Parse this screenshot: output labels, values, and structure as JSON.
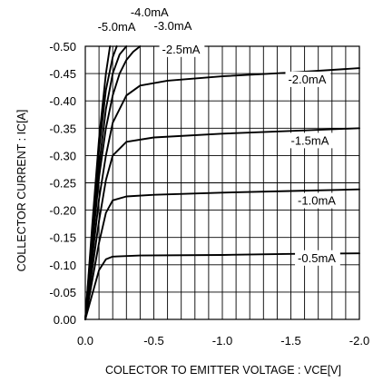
{
  "chart_data": {
    "type": "line",
    "title": "",
    "xlabel": "COLECTOR TO EMITTER VOLTAGE : VCE[V]",
    "ylabel": "COLLECTOR CURRENT : IC[A]",
    "xlim": [
      0,
      -2.0
    ],
    "ylim": [
      0,
      -0.5
    ],
    "grid": true,
    "x_ticks": [
      "0.0",
      "-0.5",
      "-1.0",
      "-1.5",
      "-2.0"
    ],
    "x_tick_values": [
      0,
      -0.5,
      -1.0,
      -1.5,
      -2.0
    ],
    "y_ticks": [
      "0.00",
      "-0.05",
      "-0.10",
      "-0.15",
      "-0.20",
      "-0.25",
      "-0.30",
      "-0.35",
      "-0.40",
      "-0.45",
      "-0.50"
    ],
    "y_tick_values": [
      0,
      -0.05,
      -0.1,
      -0.15,
      -0.2,
      -0.25,
      -0.3,
      -0.35,
      -0.4,
      -0.45,
      -0.5
    ],
    "series": [
      {
        "name": "-0.5mA",
        "label_at": [
          -1.55,
          -0.105
        ],
        "points": [
          [
            0,
            0
          ],
          [
            -0.05,
            -0.045
          ],
          [
            -0.1,
            -0.09
          ],
          [
            -0.15,
            -0.11
          ],
          [
            -0.2,
            -0.115
          ],
          [
            -0.4,
            -0.117
          ],
          [
            -1.0,
            -0.118
          ],
          [
            -1.5,
            -0.12
          ],
          [
            -2.0,
            -0.121
          ]
        ]
      },
      {
        "name": "-1.0mA",
        "label_at": [
          -1.55,
          -0.21
        ],
        "points": [
          [
            0,
            0
          ],
          [
            -0.05,
            -0.07
          ],
          [
            -0.1,
            -0.14
          ],
          [
            -0.15,
            -0.195
          ],
          [
            -0.2,
            -0.218
          ],
          [
            -0.3,
            -0.225
          ],
          [
            -0.5,
            -0.228
          ],
          [
            -1.0,
            -0.232
          ],
          [
            -1.5,
            -0.235
          ],
          [
            -2.0,
            -0.238
          ]
        ]
      },
      {
        "name": "-1.5mA",
        "label_at": [
          -1.5,
          -0.32
        ],
        "points": [
          [
            0,
            0
          ],
          [
            -0.05,
            -0.09
          ],
          [
            -0.1,
            -0.18
          ],
          [
            -0.15,
            -0.255
          ],
          [
            -0.2,
            -0.3
          ],
          [
            -0.3,
            -0.325
          ],
          [
            -0.5,
            -0.333
          ],
          [
            -1.0,
            -0.34
          ],
          [
            -1.5,
            -0.345
          ],
          [
            -2.0,
            -0.35
          ]
        ]
      },
      {
        "name": "-2.0mA",
        "label_at": [
          -1.48,
          -0.432
        ],
        "points": [
          [
            0,
            0
          ],
          [
            -0.05,
            -0.11
          ],
          [
            -0.1,
            -0.22
          ],
          [
            -0.15,
            -0.3
          ],
          [
            -0.2,
            -0.36
          ],
          [
            -0.3,
            -0.41
          ],
          [
            -0.4,
            -0.428
          ],
          [
            -0.6,
            -0.437
          ],
          [
            -1.0,
            -0.445
          ],
          [
            -1.5,
            -0.452
          ],
          [
            -2.0,
            -0.46
          ]
        ]
      },
      {
        "name": "-2.5mA",
        "label_at": [
          -0.56,
          -0.487
        ],
        "points": [
          [
            0,
            0
          ],
          [
            -0.05,
            -0.13
          ],
          [
            -0.1,
            -0.26
          ],
          [
            -0.15,
            -0.35
          ],
          [
            -0.2,
            -0.41
          ],
          [
            -0.25,
            -0.45
          ],
          [
            -0.3,
            -0.475
          ],
          [
            -0.35,
            -0.49
          ],
          [
            -0.4,
            -0.5
          ]
        ]
      },
      {
        "name": "-3.0mA",
        "label_at": [
          -0.5,
          -0.53
        ],
        "points": [
          [
            0,
            0
          ],
          [
            -0.05,
            -0.14
          ],
          [
            -0.1,
            -0.28
          ],
          [
            -0.15,
            -0.385
          ],
          [
            -0.2,
            -0.45
          ],
          [
            -0.25,
            -0.485
          ],
          [
            -0.3,
            -0.5
          ]
        ]
      },
      {
        "name": "-4.0mA",
        "label_at": [
          -0.33,
          -0.555
        ],
        "points": [
          [
            0,
            0
          ],
          [
            -0.05,
            -0.16
          ],
          [
            -0.1,
            -0.31
          ],
          [
            -0.15,
            -0.42
          ],
          [
            -0.2,
            -0.48
          ],
          [
            -0.23,
            -0.5
          ]
        ]
      },
      {
        "name": "-5.0mA",
        "label_at": [
          -0.09,
          -0.528
        ],
        "points": [
          [
            0,
            0
          ],
          [
            -0.05,
            -0.17
          ],
          [
            -0.1,
            -0.33
          ],
          [
            -0.15,
            -0.45
          ],
          [
            -0.18,
            -0.5
          ]
        ]
      }
    ]
  }
}
